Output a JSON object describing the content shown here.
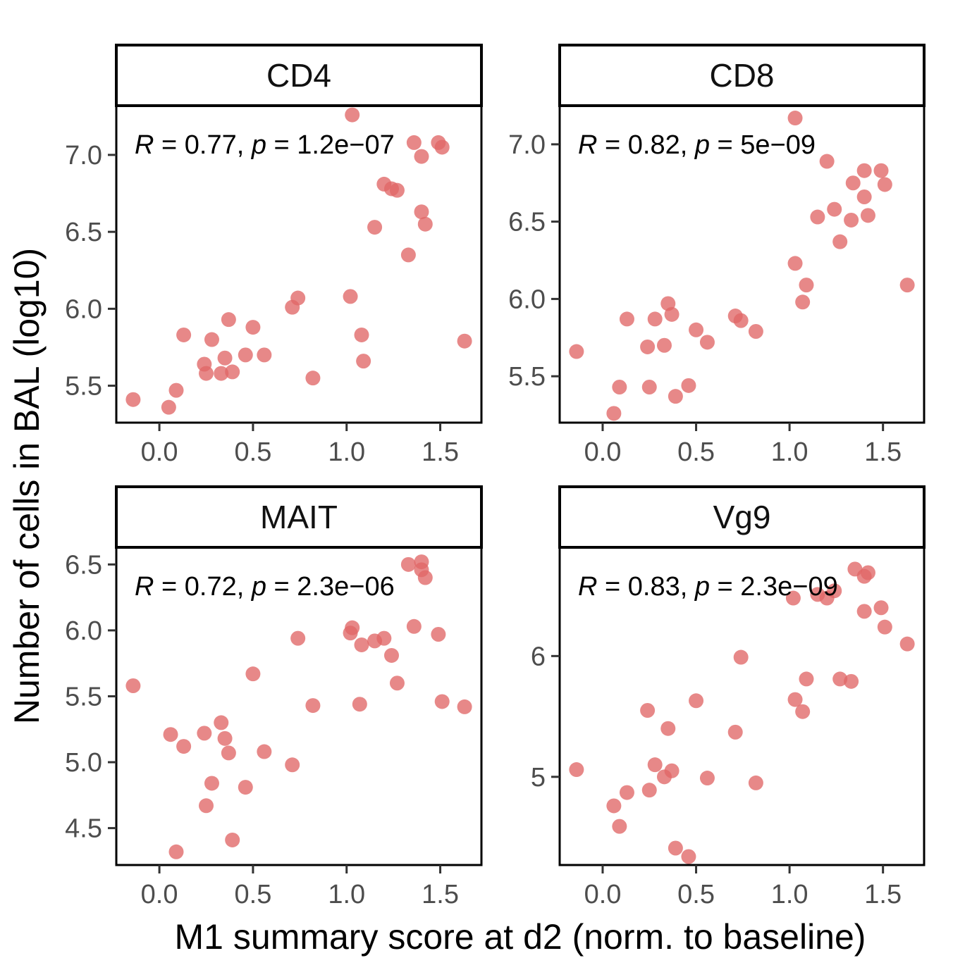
{
  "chart_data": {
    "type": "scatter",
    "layout": "facet-grid-2x2",
    "xlabel": "M1 summary score at d2 (norm. to baseline)",
    "ylabel": "Number of cells in BAL (log10)",
    "point_color": "#e06666",
    "xlim": [
      -0.23,
      1.72
    ],
    "x_ticks": [
      0.0,
      0.5,
      1.0,
      1.5
    ],
    "x_tick_labels": [
      "0.0",
      "0.5",
      "1.0",
      "1.5"
    ],
    "panels": [
      {
        "id": "cd4",
        "title": "CD4",
        "annotation": {
          "r_label": "R",
          "r_value": "0.77",
          "p_label": "p",
          "p_value": "1.2e−07"
        },
        "ylim": [
          5.26,
          7.32
        ],
        "y_ticks": [
          5.5,
          6.0,
          6.5,
          7.0
        ],
        "y_tick_labels": [
          "5.5",
          "6.0",
          "6.5",
          "7.0"
        ],
        "points": [
          [
            -0.14,
            5.41
          ],
          [
            0.05,
            5.36
          ],
          [
            0.09,
            5.47
          ],
          [
            0.13,
            5.83
          ],
          [
            0.24,
            5.64
          ],
          [
            0.25,
            5.58
          ],
          [
            0.28,
            5.8
          ],
          [
            0.33,
            5.58
          ],
          [
            0.35,
            5.68
          ],
          [
            0.37,
            5.93
          ],
          [
            0.39,
            5.59
          ],
          [
            0.46,
            5.7
          ],
          [
            0.5,
            5.88
          ],
          [
            0.56,
            5.7
          ],
          [
            0.71,
            6.01
          ],
          [
            0.74,
            6.07
          ],
          [
            0.82,
            5.55
          ],
          [
            1.02,
            6.08
          ],
          [
            1.03,
            7.26
          ],
          [
            1.08,
            5.83
          ],
          [
            1.09,
            5.66
          ],
          [
            1.15,
            6.53
          ],
          [
            1.2,
            6.81
          ],
          [
            1.24,
            6.78
          ],
          [
            1.27,
            6.77
          ],
          [
            1.33,
            6.35
          ],
          [
            1.36,
            7.08
          ],
          [
            1.4,
            6.99
          ],
          [
            1.4,
            6.63
          ],
          [
            1.42,
            6.55
          ],
          [
            1.49,
            7.08
          ],
          [
            1.51,
            7.05
          ],
          [
            1.63,
            5.79
          ]
        ]
      },
      {
        "id": "cd8",
        "title": "CD8",
        "annotation": {
          "r_label": "R",
          "r_value": "0.82",
          "p_label": "p",
          "p_value": "5e−09"
        },
        "ylim": [
          5.2,
          7.25
        ],
        "y_ticks": [
          5.5,
          6.0,
          6.5,
          7.0
        ],
        "y_tick_labels": [
          "5.5",
          "6.0",
          "6.5",
          "7.0"
        ],
        "points": [
          [
            -0.14,
            5.66
          ],
          [
            0.06,
            5.26
          ],
          [
            0.09,
            5.43
          ],
          [
            0.13,
            5.87
          ],
          [
            0.24,
            5.69
          ],
          [
            0.25,
            5.43
          ],
          [
            0.28,
            5.87
          ],
          [
            0.33,
            5.7
          ],
          [
            0.35,
            5.97
          ],
          [
            0.37,
            5.9
          ],
          [
            0.39,
            5.37
          ],
          [
            0.46,
            5.44
          ],
          [
            0.5,
            5.8
          ],
          [
            0.56,
            5.72
          ],
          [
            0.71,
            5.89
          ],
          [
            0.74,
            5.86
          ],
          [
            0.82,
            5.79
          ],
          [
            1.03,
            6.23
          ],
          [
            1.03,
            7.17
          ],
          [
            1.07,
            5.98
          ],
          [
            1.09,
            6.09
          ],
          [
            1.15,
            6.53
          ],
          [
            1.2,
            6.89
          ],
          [
            1.24,
            6.58
          ],
          [
            1.27,
            6.37
          ],
          [
            1.33,
            6.51
          ],
          [
            1.34,
            6.75
          ],
          [
            1.4,
            6.83
          ],
          [
            1.4,
            6.66
          ],
          [
            1.42,
            6.54
          ],
          [
            1.49,
            6.83
          ],
          [
            1.51,
            6.74
          ],
          [
            1.63,
            6.09
          ]
        ]
      },
      {
        "id": "mait",
        "title": "MAIT",
        "annotation": {
          "r_label": "R",
          "r_value": "0.72",
          "p_label": "p",
          "p_value": "2.3e−06"
        },
        "ylim": [
          4.22,
          6.63
        ],
        "y_ticks": [
          4.5,
          5.0,
          5.5,
          6.0,
          6.5
        ],
        "y_tick_labels": [
          "4.5",
          "5.0",
          "5.5",
          "6.0",
          "6.5"
        ],
        "points": [
          [
            -0.14,
            5.58
          ],
          [
            0.06,
            5.21
          ],
          [
            0.09,
            4.32
          ],
          [
            0.13,
            5.12
          ],
          [
            0.24,
            5.22
          ],
          [
            0.25,
            4.67
          ],
          [
            0.28,
            4.84
          ],
          [
            0.33,
            5.3
          ],
          [
            0.35,
            5.18
          ],
          [
            0.37,
            5.07
          ],
          [
            0.39,
            4.41
          ],
          [
            0.46,
            4.81
          ],
          [
            0.5,
            5.67
          ],
          [
            0.56,
            5.08
          ],
          [
            0.71,
            4.98
          ],
          [
            0.74,
            5.94
          ],
          [
            0.82,
            5.43
          ],
          [
            1.02,
            5.98
          ],
          [
            1.03,
            6.02
          ],
          [
            1.07,
            5.44
          ],
          [
            1.08,
            5.89
          ],
          [
            1.15,
            5.92
          ],
          [
            1.2,
            5.94
          ],
          [
            1.24,
            5.81
          ],
          [
            1.27,
            5.6
          ],
          [
            1.33,
            6.5
          ],
          [
            1.36,
            6.03
          ],
          [
            1.4,
            6.52
          ],
          [
            1.4,
            6.46
          ],
          [
            1.42,
            6.4
          ],
          [
            1.49,
            5.97
          ],
          [
            1.51,
            5.46
          ],
          [
            1.63,
            5.42
          ]
        ]
      },
      {
        "id": "vg9",
        "title": "Vg9",
        "annotation": {
          "r_label": "R",
          "r_value": "0.83",
          "p_label": "p",
          "p_value": "2.3e−09"
        },
        "ylim": [
          4.27,
          6.9
        ],
        "y_ticks": [
          5,
          6
        ],
        "y_tick_labels": [
          "5",
          "6"
        ],
        "points": [
          [
            -0.14,
            5.06
          ],
          [
            0.06,
            4.76
          ],
          [
            0.09,
            4.59
          ],
          [
            0.13,
            4.87
          ],
          [
            0.24,
            5.55
          ],
          [
            0.25,
            4.89
          ],
          [
            0.28,
            5.1
          ],
          [
            0.33,
            5.0
          ],
          [
            0.35,
            5.4
          ],
          [
            0.37,
            5.05
          ],
          [
            0.39,
            4.41
          ],
          [
            0.46,
            4.34
          ],
          [
            0.5,
            5.63
          ],
          [
            0.56,
            4.99
          ],
          [
            0.71,
            5.37
          ],
          [
            0.74,
            5.99
          ],
          [
            0.82,
            4.95
          ],
          [
            1.02,
            6.48
          ],
          [
            1.03,
            5.64
          ],
          [
            1.07,
            5.54
          ],
          [
            1.09,
            5.81
          ],
          [
            1.15,
            6.51
          ],
          [
            1.2,
            6.48
          ],
          [
            1.24,
            6.54
          ],
          [
            1.27,
            5.81
          ],
          [
            1.33,
            5.79
          ],
          [
            1.35,
            6.72
          ],
          [
            1.4,
            6.37
          ],
          [
            1.4,
            6.66
          ],
          [
            1.42,
            6.69
          ],
          [
            1.49,
            6.4
          ],
          [
            1.51,
            6.24
          ],
          [
            1.63,
            6.1
          ]
        ]
      }
    ]
  }
}
